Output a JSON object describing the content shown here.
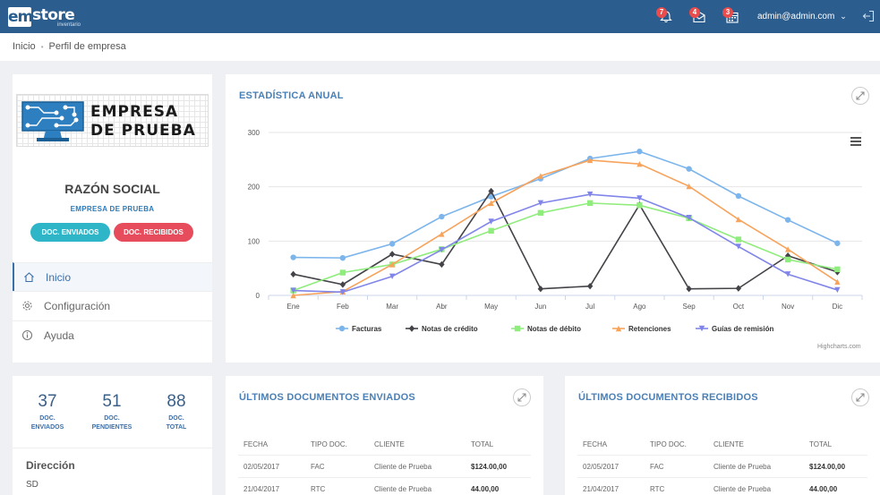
{
  "header": {
    "brand_em": "em",
    "brand_store": "store",
    "brand_sub": "inventario",
    "notif_bell_count": "7",
    "notif_mail_count": "4",
    "notif_calendar_count": "3",
    "user": "admin@admin.com"
  },
  "breadcrumb": {
    "home": "Inicio",
    "current": "Perfil de empresa"
  },
  "profile": {
    "logo_line1": "EMPRESA",
    "logo_line2": "DE PRUEBA",
    "title": "RAZÓN SOCIAL",
    "name": "EMPRESA DE PRUEBA",
    "btn_sent": "DOC. ENVIADOS",
    "btn_received": "DOC. RECIBIDOS",
    "menu": [
      {
        "label": "Inicio",
        "icon": "home-icon"
      },
      {
        "label": "Configuración",
        "icon": "gear-icon"
      },
      {
        "label": "Ayuda",
        "icon": "info-icon"
      }
    ]
  },
  "stats": {
    "items": [
      {
        "value": "37",
        "label1": "DOC.",
        "label2": "ENVIADOS"
      },
      {
        "value": "51",
        "label1": "DOC.",
        "label2": "PENDIENTES"
      },
      {
        "value": "88",
        "label1": "DOC.",
        "label2": "TOTAL"
      }
    ],
    "address_label": "Dirección",
    "address_value": "SD"
  },
  "annual_chart": {
    "title": "ESTADÍSTICA ANUAL",
    "credits": "Highcharts.com"
  },
  "chart_data": {
    "type": "line",
    "categories": [
      "Ene",
      "Feb",
      "Mar",
      "Abr",
      "May",
      "Jun",
      "Jul",
      "Ago",
      "Sep",
      "Oct",
      "Nov",
      "Dic"
    ],
    "ylim": [
      0,
      300
    ],
    "yticks": [
      0,
      100,
      200,
      300
    ],
    "legend": "bottom-center",
    "grid": true,
    "series": [
      {
        "name": "Facturas",
        "color": "#7cb5ec",
        "marker": "circle",
        "values": [
          70,
          69,
          95,
          145,
          182,
          215,
          252,
          265,
          233,
          183,
          139,
          96
        ]
      },
      {
        "name": "Notas de crédito",
        "color": "#434348",
        "marker": "diamond",
        "values": [
          39,
          20,
          76,
          57,
          192,
          12,
          17,
          167,
          12,
          13,
          73,
          43
        ]
      },
      {
        "name": "Notas de débito",
        "color": "#90ed7d",
        "marker": "square",
        "values": [
          9,
          42,
          57,
          85,
          119,
          152,
          170,
          166,
          142,
          103,
          66,
          48
        ]
      },
      {
        "name": "Retenciones",
        "color": "#f7a35c",
        "marker": "triangle",
        "values": [
          0,
          7,
          57,
          113,
          170,
          220,
          249,
          242,
          201,
          140,
          85,
          25
        ]
      },
      {
        "name": "Guías de remisión",
        "color": "#8085e9",
        "marker": "triangle-down",
        "values": [
          9,
          6,
          35,
          84,
          136,
          170,
          186,
          179,
          143,
          90,
          39,
          10
        ]
      }
    ]
  },
  "sent_docs": {
    "title": "ÚLTIMOS DOCUMENTOS ENVIADOS",
    "headers": [
      "FECHA",
      "TIPO DOC.",
      "CLIENTE",
      "TOTAL"
    ],
    "rows": [
      [
        "02/05/2017",
        "FAC",
        "Cliente de Prueba",
        "$124.00,00"
      ],
      [
        "21/04/2017",
        "RTC",
        "Cliente de Prueba",
        "44.00,00"
      ]
    ]
  },
  "received_docs": {
    "title": "ÚLTIMOS DOCUMENTOS RECIBIDOS",
    "headers": [
      "FECHA",
      "TIPO DOC.",
      "CLIENTE",
      "TOTAL"
    ],
    "rows": [
      [
        "02/05/2017",
        "FAC",
        "Cliente de Prueba",
        "$124.00,00"
      ],
      [
        "21/04/2017",
        "RTC",
        "Cliente de Prueba",
        "44.00,00"
      ]
    ]
  }
}
